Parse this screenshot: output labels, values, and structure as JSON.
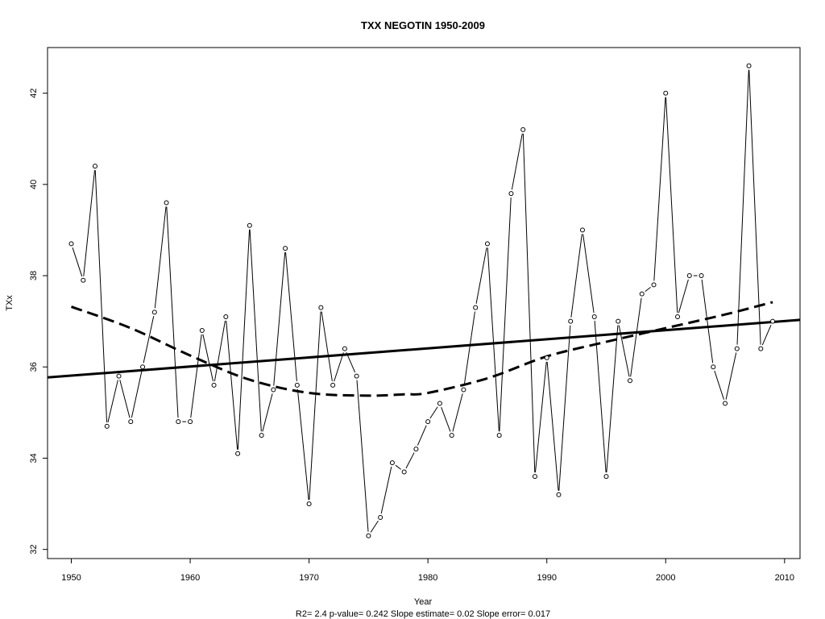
{
  "chart_data": {
    "type": "line",
    "title": "TXX   NEGOTIN 1950-2009",
    "xlabel": "Year",
    "ylabel": "TXx",
    "footnote": "R2= 2.4  p-value= 0.242  Slope estimate= 0.02  Slope error= 0.017",
    "xlim": [
      1948,
      2011.3
    ],
    "ylim": [
      31.8,
      43.0
    ],
    "x_ticks": [
      1950,
      1960,
      1970,
      1980,
      1990,
      2000,
      2010
    ],
    "y_ticks": [
      32,
      34,
      36,
      38,
      40,
      42
    ],
    "grid": false,
    "series": [
      {
        "style": "line-with-open-circle-markers",
        "x": [
          1950,
          1951,
          1952,
          1953,
          1954,
          1955,
          1956,
          1957,
          1958,
          1959,
          1960,
          1961,
          1962,
          1963,
          1964,
          1965,
          1966,
          1967,
          1968,
          1969,
          1970,
          1971,
          1972,
          1973,
          1974,
          1975,
          1976,
          1977,
          1978,
          1979,
          1980,
          1981,
          1982,
          1983,
          1984,
          1985,
          1986,
          1987,
          1988,
          1989,
          1990,
          1991,
          1992,
          1993,
          1994,
          1995,
          1996,
          1997,
          1998,
          1999,
          2000,
          2001,
          2002,
          2003,
          2004,
          2005,
          2006,
          2007,
          2008,
          2009
        ],
        "values": [
          38.7,
          37.9,
          40.4,
          34.7,
          35.8,
          34.8,
          36.0,
          37.2,
          39.6,
          34.8,
          34.8,
          36.8,
          35.6,
          37.1,
          34.1,
          39.1,
          34.5,
          35.5,
          38.6,
          35.6,
          33.0,
          37.3,
          35.6,
          36.4,
          35.8,
          32.3,
          32.7,
          33.9,
          33.7,
          34.2,
          34.8,
          35.2,
          34.5,
          35.5,
          37.3,
          38.7,
          34.5,
          39.8,
          41.2,
          33.6,
          36.2,
          33.2,
          37.0,
          39.0,
          37.1,
          33.6,
          37.0,
          35.7,
          37.6,
          37.8,
          42.0,
          37.1,
          38.0,
          38.0,
          36.0,
          35.2,
          36.4,
          42.6,
          36.4,
          37.0
        ]
      },
      {
        "style": "solid-thick-linear-trend",
        "x": [
          1948,
          2011.3
        ],
        "values": [
          35.77,
          37.03
        ]
      },
      {
        "style": "dashed-thick-smooth-fit",
        "x": [
          1950,
          1955,
          1960,
          1965,
          1970,
          1975,
          1978,
          1980,
          1985,
          1990,
          1995,
          2000,
          2005,
          2009
        ],
        "values": [
          37.32,
          36.85,
          36.25,
          35.72,
          35.43,
          35.37,
          35.4,
          35.43,
          35.75,
          36.23,
          36.55,
          36.85,
          37.15,
          37.42
        ]
      }
    ]
  }
}
